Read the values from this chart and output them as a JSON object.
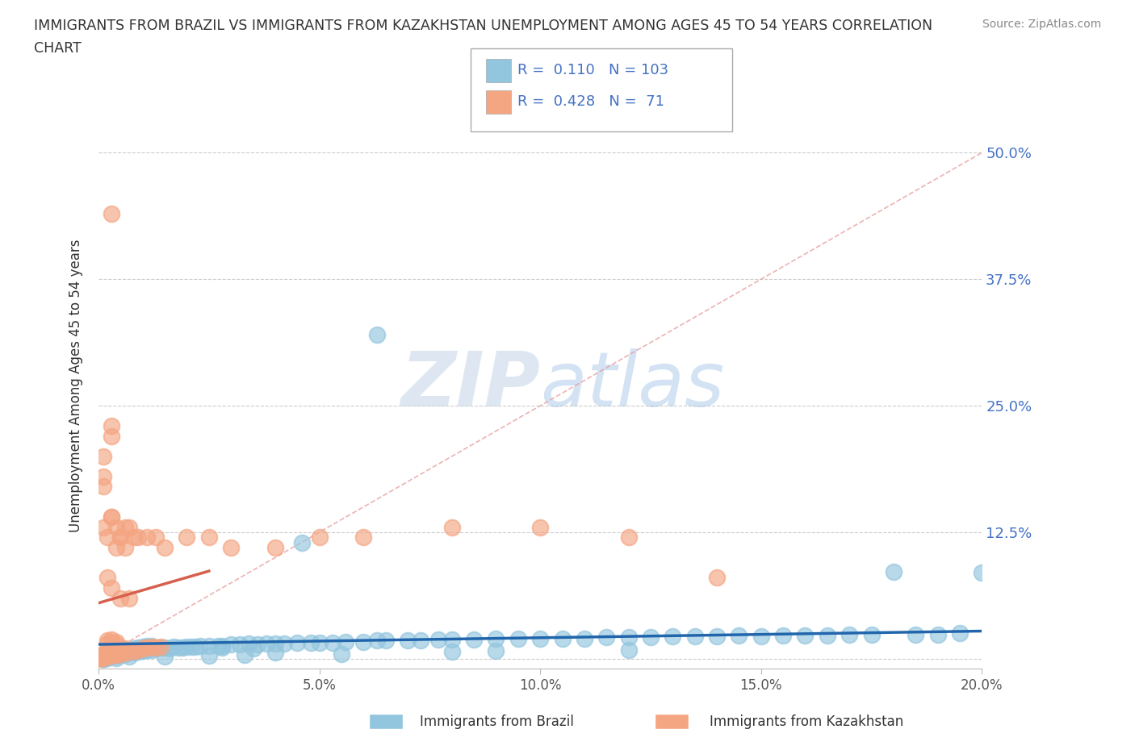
{
  "title_line1": "IMMIGRANTS FROM BRAZIL VS IMMIGRANTS FROM KAZAKHSTAN UNEMPLOYMENT AMONG AGES 45 TO 54 YEARS CORRELATION",
  "title_line2": "CHART",
  "source_text": "Source: ZipAtlas.com",
  "ylabel": "Unemployment Among Ages 45 to 54 years",
  "xlim": [
    0.0,
    0.2
  ],
  "ylim": [
    -0.01,
    0.55
  ],
  "xtick_vals": [
    0.0,
    0.05,
    0.1,
    0.15,
    0.2
  ],
  "xtick_labels": [
    "0.0%",
    "5.0%",
    "10.0%",
    "15.0%",
    "20.0%"
  ],
  "ytick_vals": [
    0.0,
    0.125,
    0.25,
    0.375,
    0.5
  ],
  "ytick_labels": [
    "",
    "12.5%",
    "25.0%",
    "37.5%",
    "50.0%"
  ],
  "brazil_color": "#92c5de",
  "kazakhstan_color": "#f4a582",
  "brazil_trend_color": "#2166ac",
  "kazakhstan_trend_color": "#d6604d",
  "diagonal_color": "#f4a582",
  "brazil_R": 0.11,
  "brazil_N": 103,
  "kazakhstan_R": 0.428,
  "kazakhstan_N": 71,
  "watermark_zip": "ZIP",
  "watermark_atlas": "atlas",
  "legend_label_brazil": "Immigrants from Brazil",
  "legend_label_kazakhstan": "Immigrants from Kazakhstan",
  "ytick_color": "#4472c4",
  "grid_color": "#cccccc",
  "title_color": "#333333",
  "source_color": "#888888",
  "brazil_scatter": {
    "x": [
      0.001,
      0.001,
      0.001,
      0.001,
      0.001,
      0.002,
      0.002,
      0.002,
      0.002,
      0.003,
      0.003,
      0.003,
      0.004,
      0.004,
      0.005,
      0.005,
      0.005,
      0.006,
      0.006,
      0.007,
      0.007,
      0.008,
      0.008,
      0.009,
      0.009,
      0.01,
      0.01,
      0.011,
      0.011,
      0.012,
      0.012,
      0.013,
      0.014,
      0.015,
      0.016,
      0.017,
      0.018,
      0.019,
      0.02,
      0.021,
      0.022,
      0.023,
      0.025,
      0.027,
      0.028,
      0.03,
      0.032,
      0.034,
      0.036,
      0.038,
      0.04,
      0.042,
      0.045,
      0.048,
      0.05,
      0.053,
      0.056,
      0.06,
      0.063,
      0.065,
      0.07,
      0.073,
      0.077,
      0.08,
      0.085,
      0.09,
      0.095,
      0.1,
      0.105,
      0.11,
      0.115,
      0.12,
      0.125,
      0.13,
      0.135,
      0.14,
      0.145,
      0.15,
      0.155,
      0.16,
      0.165,
      0.17,
      0.175,
      0.18,
      0.185,
      0.19,
      0.195,
      0.2,
      0.046,
      0.063,
      0.028,
      0.035,
      0.09,
      0.12,
      0.08,
      0.04,
      0.055,
      0.033,
      0.025,
      0.015,
      0.007,
      0.004,
      0.001
    ],
    "y": [
      0.0,
      0.001,
      0.002,
      0.003,
      0.004,
      0.001,
      0.002,
      0.004,
      0.006,
      0.002,
      0.004,
      0.007,
      0.003,
      0.006,
      0.004,
      0.007,
      0.01,
      0.005,
      0.008,
      0.006,
      0.009,
      0.006,
      0.01,
      0.007,
      0.011,
      0.008,
      0.012,
      0.009,
      0.013,
      0.009,
      0.013,
      0.01,
      0.011,
      0.011,
      0.01,
      0.012,
      0.011,
      0.011,
      0.012,
      0.012,
      0.012,
      0.013,
      0.013,
      0.013,
      0.013,
      0.014,
      0.014,
      0.015,
      0.014,
      0.015,
      0.015,
      0.015,
      0.016,
      0.016,
      0.016,
      0.016,
      0.017,
      0.017,
      0.018,
      0.018,
      0.018,
      0.018,
      0.019,
      0.019,
      0.019,
      0.02,
      0.02,
      0.02,
      0.02,
      0.02,
      0.021,
      0.021,
      0.021,
      0.022,
      0.022,
      0.022,
      0.023,
      0.022,
      0.023,
      0.023,
      0.023,
      0.024,
      0.024,
      0.086,
      0.024,
      0.024,
      0.025,
      0.085,
      0.115,
      0.32,
      0.011,
      0.01,
      0.008,
      0.009,
      0.007,
      0.006,
      0.005,
      0.004,
      0.003,
      0.002,
      0.002,
      0.001,
      0.0
    ]
  },
  "kazakhstan_scatter": {
    "x": [
      0.0,
      0.0,
      0.0,
      0.0,
      0.001,
      0.001,
      0.001,
      0.001,
      0.001,
      0.002,
      0.002,
      0.002,
      0.003,
      0.003,
      0.003,
      0.004,
      0.004,
      0.005,
      0.005,
      0.006,
      0.006,
      0.007,
      0.008,
      0.009,
      0.01,
      0.011,
      0.012,
      0.013,
      0.014,
      0.002,
      0.002,
      0.003,
      0.003,
      0.004,
      0.004,
      0.001,
      0.001,
      0.002,
      0.003,
      0.004,
      0.005,
      0.006,
      0.007,
      0.008,
      0.009,
      0.011,
      0.013,
      0.015,
      0.02,
      0.025,
      0.03,
      0.04,
      0.05,
      0.06,
      0.08,
      0.1,
      0.12,
      0.14,
      0.003,
      0.001,
      0.001,
      0.002,
      0.003,
      0.005,
      0.007,
      0.003,
      0.003,
      0.003,
      0.004,
      0.005,
      0.006
    ],
    "y": [
      0.0,
      0.001,
      0.002,
      0.003,
      0.001,
      0.002,
      0.003,
      0.004,
      0.005,
      0.002,
      0.004,
      0.006,
      0.003,
      0.005,
      0.008,
      0.004,
      0.007,
      0.005,
      0.009,
      0.006,
      0.01,
      0.007,
      0.008,
      0.009,
      0.01,
      0.011,
      0.012,
      0.011,
      0.012,
      0.015,
      0.018,
      0.016,
      0.019,
      0.014,
      0.017,
      0.13,
      0.17,
      0.12,
      0.14,
      0.11,
      0.12,
      0.13,
      0.13,
      0.12,
      0.12,
      0.12,
      0.12,
      0.11,
      0.12,
      0.12,
      0.11,
      0.11,
      0.12,
      0.12,
      0.13,
      0.13,
      0.12,
      0.08,
      0.44,
      0.2,
      0.18,
      0.08,
      0.07,
      0.06,
      0.06,
      0.23,
      0.22,
      0.14,
      0.13,
      0.12,
      0.11
    ]
  }
}
